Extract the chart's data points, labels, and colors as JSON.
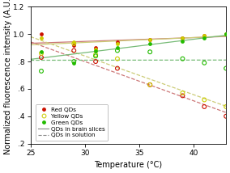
{
  "title": "",
  "xlabel": "Temperature (°C)",
  "ylabel": "Normalized fluorescence intensity (A.U.)",
  "xlim": [
    25,
    43
  ],
  "ylim": [
    0.2,
    1.2
  ],
  "xticks": [
    25,
    30,
    35,
    40
  ],
  "yticks": [
    0.2,
    0.4,
    0.6,
    0.8,
    1.0,
    1.2
  ],
  "ytick_labels": [
    ".2",
    ".4",
    ".6",
    ".8",
    "1.0",
    "1.2"
  ],
  "temp_points": [
    26,
    29,
    31,
    33,
    36,
    39,
    41,
    43
  ],
  "red_brain": [
    1.0,
    0.92,
    0.9,
    0.94,
    0.96,
    0.97,
    0.99,
    1.0
  ],
  "red_solution": [
    0.83,
    0.88,
    0.8,
    0.75,
    0.63,
    0.55,
    0.47,
    0.4
  ],
  "yellow_brain": [
    0.97,
    0.94,
    0.89,
    0.93,
    0.96,
    0.97,
    0.99,
    1.0
  ],
  "yellow_solution": [
    0.86,
    0.93,
    0.85,
    0.82,
    0.63,
    0.57,
    0.52,
    0.47
  ],
  "green_brain": [
    0.87,
    0.79,
    0.88,
    0.9,
    0.93,
    0.95,
    0.97,
    1.0
  ],
  "green_solution": [
    0.73,
    0.8,
    0.84,
    0.88,
    0.87,
    0.82,
    0.79,
    0.75
  ],
  "red_color": "#cc1100",
  "yellow_color": "#cccc00",
  "green_color": "#22bb00",
  "red_line_color": "#cc7777",
  "yellow_line_color": "#cccc77",
  "green_line_color": "#77bb77",
  "bg_color": "#ffffff",
  "legend_fontsize": 5.2,
  "axis_label_fontsize": 7.0,
  "tick_fontsize": 6.5
}
